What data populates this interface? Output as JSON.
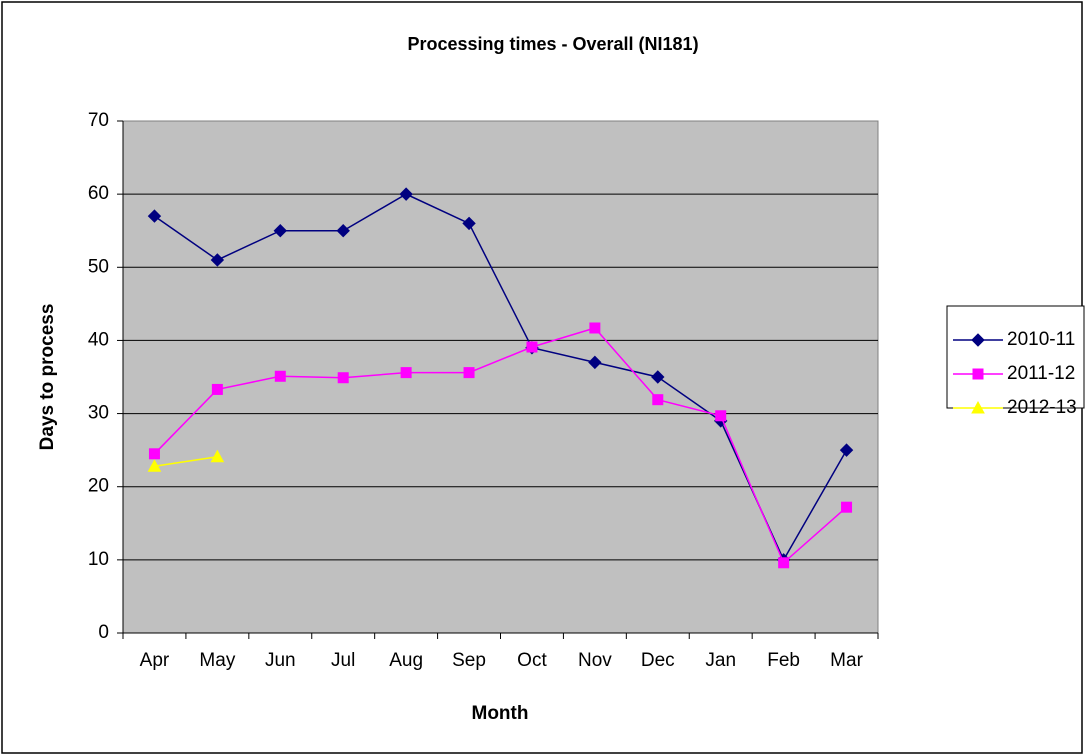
{
  "chart_data": {
    "type": "line",
    "title": "Processing times - Overall (NI181)",
    "x_label": "Month",
    "y_label": "Days to process",
    "categories": [
      "Apr",
      "May",
      "Jun",
      "Jul",
      "Aug",
      "Sep",
      "Oct",
      "Nov",
      "Dec",
      "Jan",
      "Feb",
      "Mar"
    ],
    "series": [
      {
        "name": "2010-11",
        "color": "#000080",
        "marker": "diamond",
        "values": [
          57,
          51,
          55,
          55,
          60,
          56,
          39,
          37,
          35,
          29,
          10,
          25
        ]
      },
      {
        "name": "2011-12",
        "color": "#ff00ff",
        "marker": "square",
        "values": [
          24.5,
          33.3,
          35.1,
          34.9,
          35.6,
          35.6,
          39.1,
          41.7,
          31.9,
          29.7,
          9.6,
          17.2
        ]
      },
      {
        "name": "2012-13",
        "color": "#ffff00",
        "marker": "triangle",
        "values": [
          22.8,
          24.1,
          null,
          null,
          null,
          null,
          null,
          null,
          null,
          null,
          null,
          null
        ]
      }
    ],
    "ylim": [
      0,
      70
    ],
    "yticks": [
      0,
      10,
      20,
      30,
      40,
      50,
      60,
      70
    ],
    "grid": true,
    "legend": "right"
  }
}
